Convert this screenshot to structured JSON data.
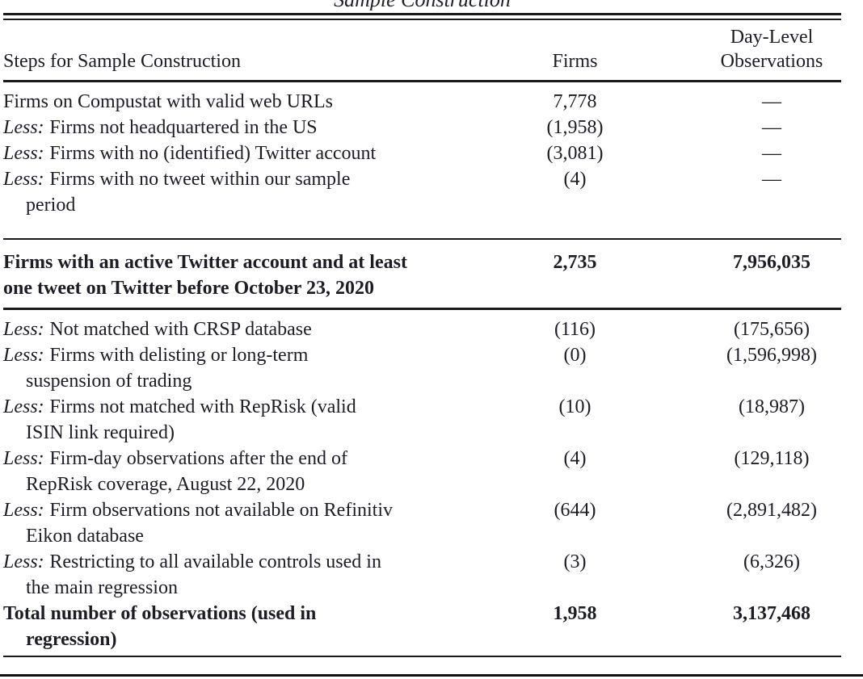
{
  "title": "Sample Construction",
  "header": {
    "col1": "Steps for Sample Construction",
    "col2": "Firms",
    "col3_line1": "Day-Level",
    "col3_line2": "Observations"
  },
  "rows": [
    {
      "prefix": "",
      "line1": "Firms on Compustat with valid web URLs",
      "line2": "",
      "firms": "7,778",
      "obs": "—"
    },
    {
      "prefix": "Less:",
      "line1": "Firms not headquartered in the US",
      "line2": "",
      "firms": "(1,958)",
      "obs": "—"
    },
    {
      "prefix": "Less:",
      "line1": "Firms with no (identified) Twitter account",
      "line2": "",
      "firms": "(3,081)",
      "obs": "—"
    },
    {
      "prefix": "Less:",
      "line1": "Firms with no tweet within our sample",
      "line2": "period",
      "firms": "(4)",
      "obs": "—"
    },
    {
      "prefix": "",
      "line1": "Firms with an active Twitter account and at least",
      "line2": "one tweet on Twitter before October 23, 2020",
      "firms": "2,735",
      "obs": "7,956,035"
    },
    {
      "prefix": "Less:",
      "line1": "Not matched with CRSP database",
      "line2": "",
      "firms": "(116)",
      "obs": "(175,656)"
    },
    {
      "prefix": "Less:",
      "line1": "Firms with delisting or long-term",
      "line2": "suspension of trading",
      "firms": "(0)",
      "obs": "(1,596,998)"
    },
    {
      "prefix": "Less:",
      "line1": "Firms not matched with RepRisk (valid",
      "line2": "ISIN link required)",
      "firms": "(10)",
      "obs": "(18,987)"
    },
    {
      "prefix": "Less:",
      "line1": "Firm-day observations after the end of",
      "line2": "RepRisk coverage, August 22, 2020",
      "firms": "(4)",
      "obs": "(129,118)"
    },
    {
      "prefix": "Less:",
      "line1": "Firm observations not available on Refinitiv",
      "line2": "Eikon database",
      "firms": "(644)",
      "obs": "(2,891,482)"
    },
    {
      "prefix": "Less:",
      "line1": "Restricting to all available controls used in",
      "line2": "the main regression",
      "firms": "(3)",
      "obs": "(6,326)"
    },
    {
      "prefix": "",
      "line1": "Total number of observations (used in",
      "line2": "regression)",
      "firms": "1,958",
      "obs": "3,137,468"
    }
  ],
  "colors": {
    "text": "#1c1c24",
    "rule": "#1a1a1a",
    "background": "#ffffff"
  }
}
